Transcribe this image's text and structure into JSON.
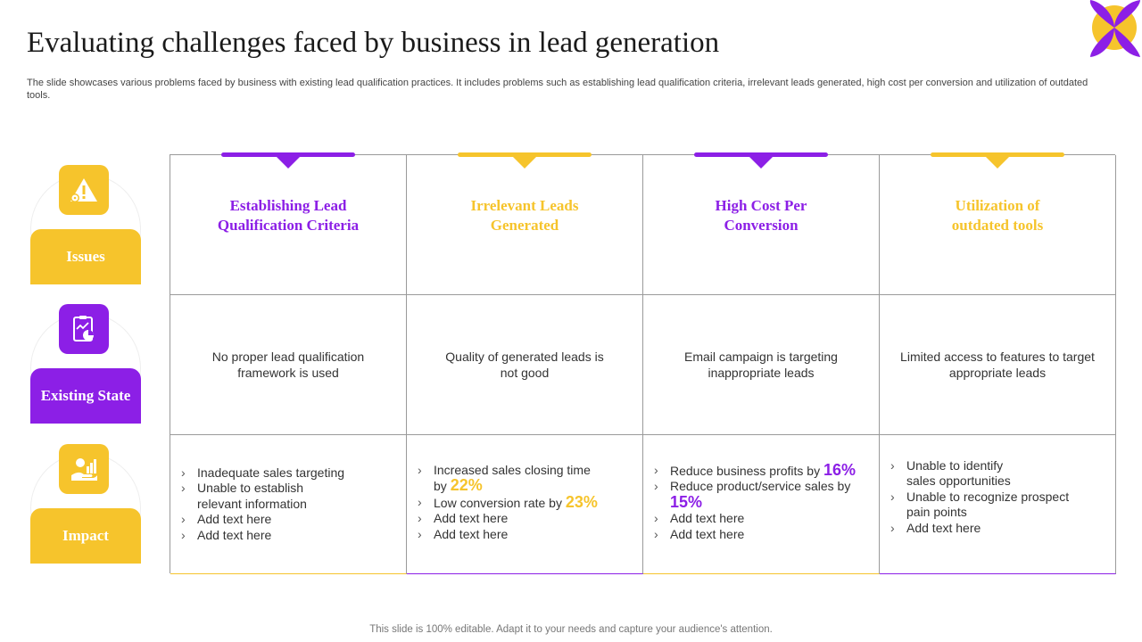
{
  "colors": {
    "purple": "#8c1fe6",
    "yellow": "#f6c42c"
  },
  "title": "Evaluating challenges faced by business in lead generation",
  "subtitle": "The slide showcases various problems faced by business with existing lead qualification practices. It includes problems such as establishing lead qualification criteria, irrelevant leads generated, high cost per conversion and utilization of outdated tools.",
  "side": {
    "issues": {
      "label": "Issues",
      "icon": "warning-gear-icon"
    },
    "state": {
      "label": "Existing State",
      "icon": "report-chart-icon"
    },
    "impact": {
      "label": "Impact",
      "icon": "hand-money-icon"
    }
  },
  "columns": [
    {
      "heading": "Establishing Lead Qualification Criteria",
      "state": "No proper lead qualification framework is used",
      "impact": [
        {
          "text": "Inadequate sales targeting"
        },
        {
          "text": "Unable to establish relevant information"
        },
        {
          "text": "Add text here"
        },
        {
          "text": "Add text here"
        }
      ]
    },
    {
      "heading": "Irrelevant Leads Generated",
      "state": "Quality of generated leads is not good",
      "impact": [
        {
          "text": "Increased sales closing time by",
          "pct": "22%"
        },
        {
          "text": "Low conversion rate by",
          "pct": "23%"
        },
        {
          "text": "Add text here"
        },
        {
          "text": "Add text here"
        }
      ]
    },
    {
      "heading": "High Cost Per Conversion",
      "state": "Email campaign is targeting inappropriate leads",
      "impact": [
        {
          "text": "Reduce business profits by",
          "pct": "16%"
        },
        {
          "text": "Reduce product/service sales by",
          "pct": "15%"
        },
        {
          "text": "Add text here"
        },
        {
          "text": "Add text here"
        }
      ]
    },
    {
      "heading": "Utilization of outdated tools",
      "state": "Limited access to features to target appropriate leads",
      "impact": [
        {
          "text": "Unable to identify sales opportunities"
        },
        {
          "text": "Unable to recognize prospect pain points"
        },
        {
          "text": "Add text here"
        }
      ]
    }
  ],
  "footer": "This slide is 100% editable. Adapt it to your needs and capture your audience's attention."
}
